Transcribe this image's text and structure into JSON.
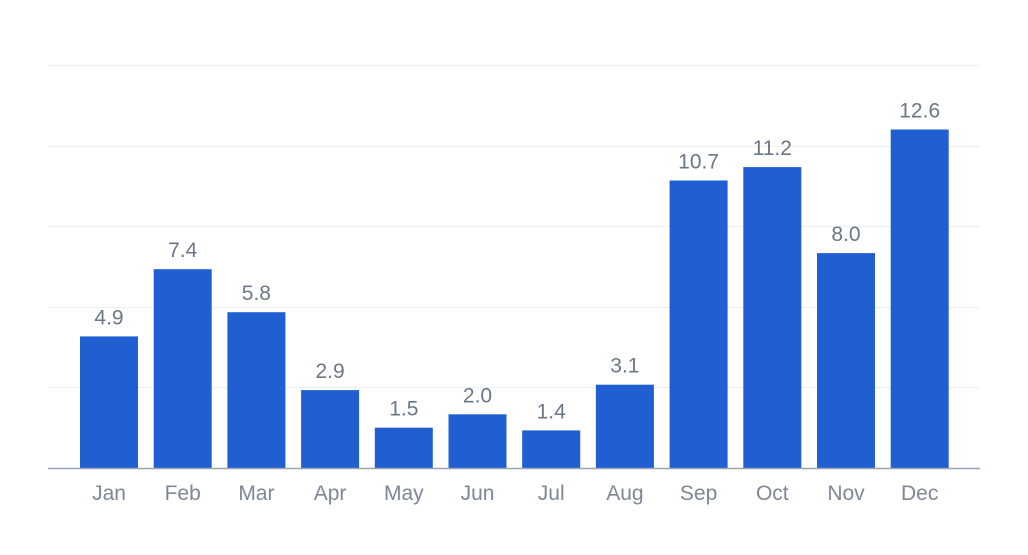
{
  "chart_data": {
    "type": "bar",
    "title": "",
    "xlabel": "",
    "ylabel": "",
    "categories": [
      "Jan",
      "Feb",
      "Mar",
      "Apr",
      "May",
      "Jun",
      "Jul",
      "Aug",
      "Sep",
      "Oct",
      "Nov",
      "Dec"
    ],
    "values": [
      4.9,
      7.4,
      5.8,
      2.9,
      1.5,
      2.0,
      1.4,
      3.1,
      10.7,
      11.2,
      8.0,
      12.6
    ],
    "value_labels": [
      "4.9",
      "7.4",
      "5.8",
      "2.9",
      "1.5",
      "2.0",
      "1.4",
      "3.1",
      "10.7",
      "11.2",
      "8.0",
      "12.6"
    ],
    "ylim": [
      0,
      15
    ],
    "grid": true,
    "legend": "none",
    "colors": {
      "bar": "#1f5fd1",
      "grid": "#eceef1",
      "axis": "#9aa5b4",
      "label": "#6b7787"
    }
  }
}
